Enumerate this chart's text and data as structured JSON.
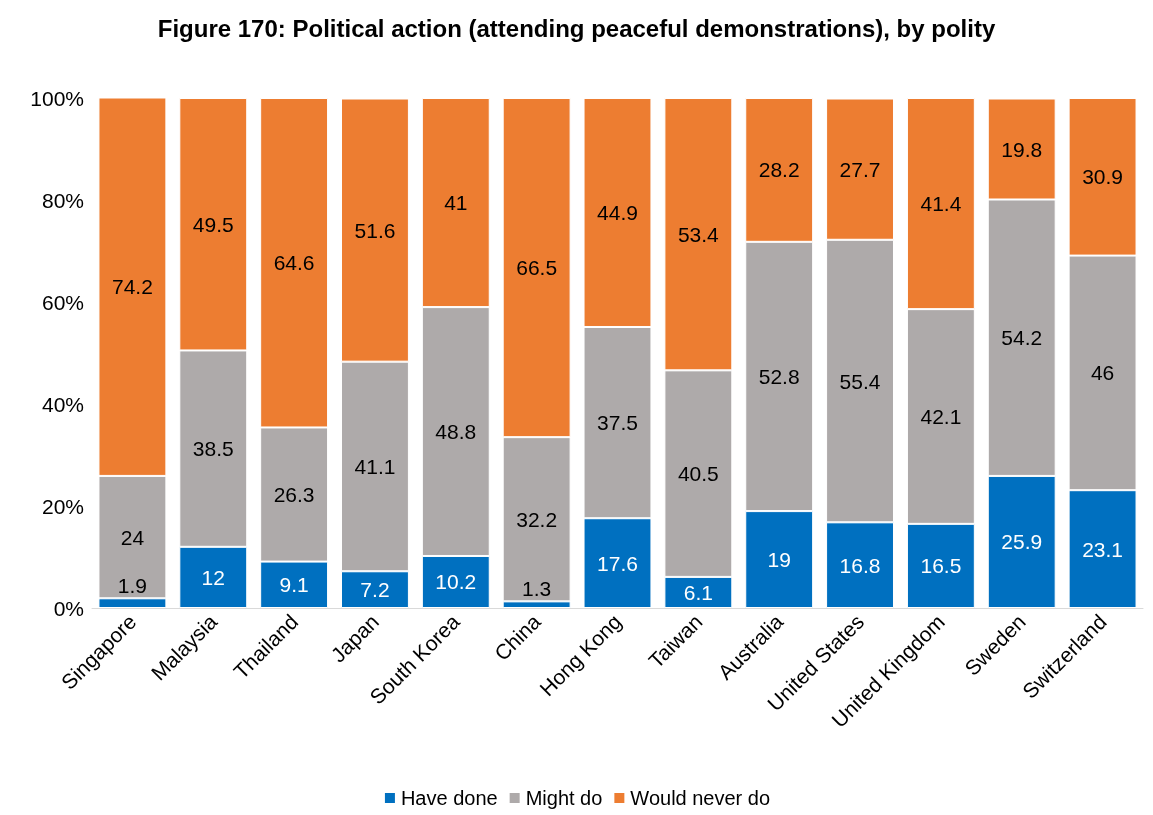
{
  "chart_data": {
    "type": "bar",
    "title": "Figure 170: Political action (attending peaceful demonstrations), by polity",
    "categories": [
      "Singapore",
      "Malaysia",
      "Thailand",
      "Japan",
      "South Korea",
      "China",
      "Hong Kong",
      "Taiwan",
      "Australia",
      "United States",
      "United Kingdom",
      "Sweden",
      "Switzerland"
    ],
    "series": [
      {
        "name": "Have done",
        "color": "#0070c0",
        "values": [
          1.9,
          12,
          9.1,
          7.2,
          10.2,
          1.3,
          17.6,
          6.1,
          19,
          16.8,
          16.5,
          25.9,
          23.1
        ]
      },
      {
        "name": "Might do",
        "color": "#aeaaaa",
        "values": [
          24,
          38.5,
          26.3,
          41.1,
          48.8,
          32.2,
          37.5,
          40.5,
          52.8,
          55.4,
          42.1,
          54.2,
          46
        ]
      },
      {
        "name": "Would never do",
        "color": "#ed7d31",
        "values": [
          74.2,
          49.5,
          64.6,
          51.6,
          41,
          66.5,
          44.9,
          53.4,
          28.2,
          27.7,
          41.4,
          19.8,
          30.9
        ]
      }
    ],
    "stacked": true,
    "data_labels": true,
    "legend": "bottom",
    "grid": false,
    "ylim": [
      0,
      100
    ],
    "yticks": [
      {
        "value": 0,
        "label": "0%"
      },
      {
        "value": 20,
        "label": "20%"
      },
      {
        "value": 40,
        "label": "40%"
      },
      {
        "value": 60,
        "label": "60%"
      },
      {
        "value": 80,
        "label": "80%"
      },
      {
        "value": 100,
        "label": "100%"
      }
    ]
  }
}
